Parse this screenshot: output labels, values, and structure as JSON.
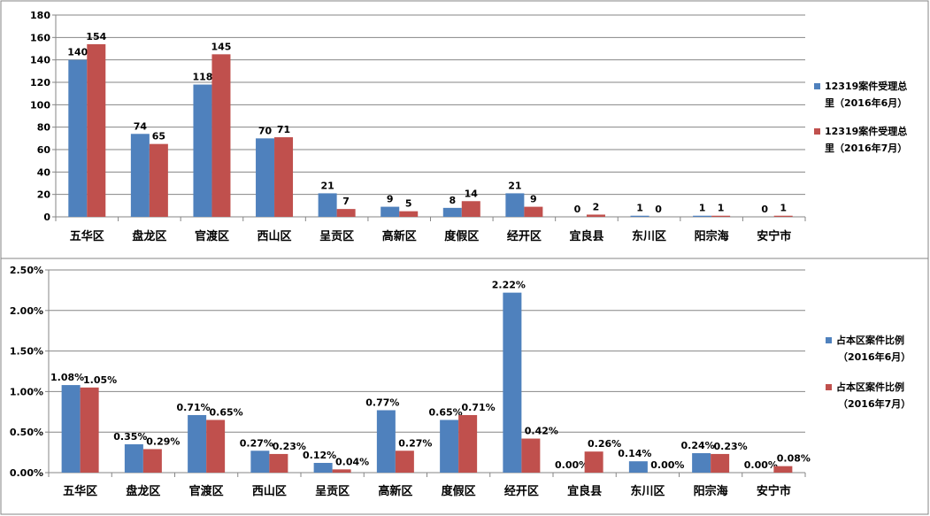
{
  "colors": {
    "series1": "#4F81BD",
    "series2": "#C0504D",
    "grid": "#868686",
    "border": "#868686"
  },
  "chart_data": [
    {
      "type": "bar",
      "categories": [
        "五华区",
        "盘龙区",
        "官渡区",
        "西山区",
        "呈贡区",
        "高新区",
        "度假区",
        "经开区",
        "宜良县",
        "东川区",
        "阳宗海",
        "安宁市"
      ],
      "series": [
        {
          "name": "12319案件受理总里（2016年6月）",
          "name_lines": [
            "12319案件受理总",
            "里（2016年6月）"
          ],
          "values": [
            140,
            74,
            118,
            70,
            21,
            9,
            8,
            21,
            0,
            1,
            1,
            0
          ]
        },
        {
          "name": "12319案件受理总里（2016年7月）",
          "name_lines": [
            "12319案件受理总",
            "里（2016年7月）"
          ],
          "values": [
            154,
            65,
            145,
            71,
            7,
            5,
            14,
            9,
            2,
            0,
            1,
            1
          ]
        }
      ],
      "ylim": [
        0,
        180
      ],
      "yticks": [
        "0",
        "20",
        "40",
        "60",
        "80",
        "100",
        "120",
        "140",
        "160",
        "180"
      ],
      "grid": true,
      "legend": "right"
    },
    {
      "type": "bar",
      "categories": [
        "五华区",
        "盘龙区",
        "官渡区",
        "西山区",
        "呈贡区",
        "高新区",
        "度假区",
        "经开区",
        "宜良县",
        "东川区",
        "阳宗海",
        "安宁市"
      ],
      "series": [
        {
          "name": "占本区案件比例（2016年6月）",
          "name_lines": [
            "占本区案件比例",
            "（2016年6月）"
          ],
          "values": [
            1.08,
            0.35,
            0.71,
            0.27,
            0.12,
            0.77,
            0.65,
            2.22,
            0.0,
            0.14,
            0.24,
            0.0
          ],
          "labels": [
            "1.08%",
            "0.35%",
            "0.71%",
            "0.27%",
            "0.12%",
            "0.77%",
            "0.65%",
            "2.22%",
            "0.00%",
            "0.14%",
            "0.24%",
            "0.00%"
          ]
        },
        {
          "name": "占本区案件比例（2016年7月）",
          "name_lines": [
            "占本区案件比例",
            "（2016年7月）"
          ],
          "values": [
            1.05,
            0.29,
            0.65,
            0.23,
            0.04,
            0.27,
            0.71,
            0.42,
            0.26,
            0.0,
            0.23,
            0.08
          ],
          "labels": [
            "1.05%",
            "0.29%",
            "0.65%",
            "0.23%",
            "0.04%",
            "0.27%",
            "0.71%",
            "0.42%",
            "0.26%",
            "0.00%",
            "0.23%",
            "0.08%"
          ]
        }
      ],
      "ylim": [
        0,
        2.5
      ],
      "yticks": [
        "0.00%",
        "0.50%",
        "1.00%",
        "1.50%",
        "2.00%",
        "2.50%"
      ],
      "grid": true,
      "legend": "right"
    }
  ]
}
